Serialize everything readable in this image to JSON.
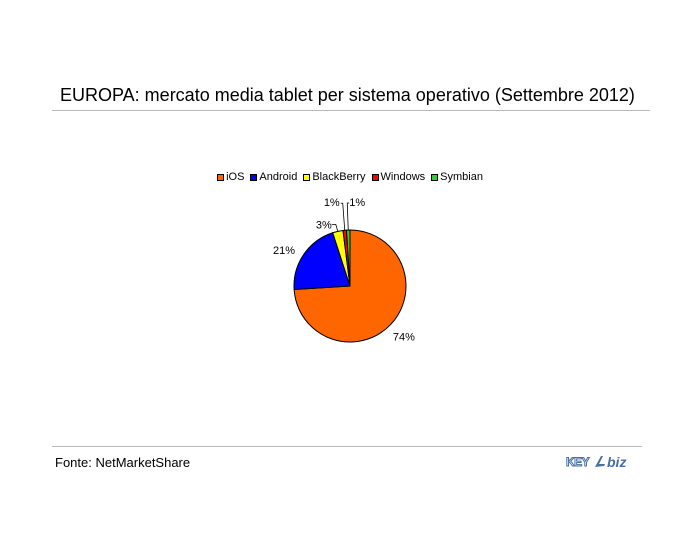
{
  "title": "EUROPA: mercato media tablet per sistema operativo (Settembre 2012)",
  "source": "Fonte: NetMarketShare",
  "logo_text": "KEY4biz",
  "chart_data": {
    "type": "pie",
    "title": "EUROPA: mercato media tablet per sistema operativo (Settembre 2012)",
    "legend_position": "top",
    "slices": [
      {
        "name": "iOS",
        "value": 74,
        "label": "74%",
        "color": "#ff6600"
      },
      {
        "name": "Android",
        "value": 21,
        "label": "21%",
        "color": "#0000ff"
      },
      {
        "name": "BlackBerry",
        "value": 3,
        "label": "3%",
        "color": "#ffff00"
      },
      {
        "name": "Windows",
        "value": 1,
        "label": "1%",
        "color": "#ff0000"
      },
      {
        "name": "Symbian",
        "value": 1,
        "label": "1%",
        "color": "#33cc33"
      }
    ]
  }
}
